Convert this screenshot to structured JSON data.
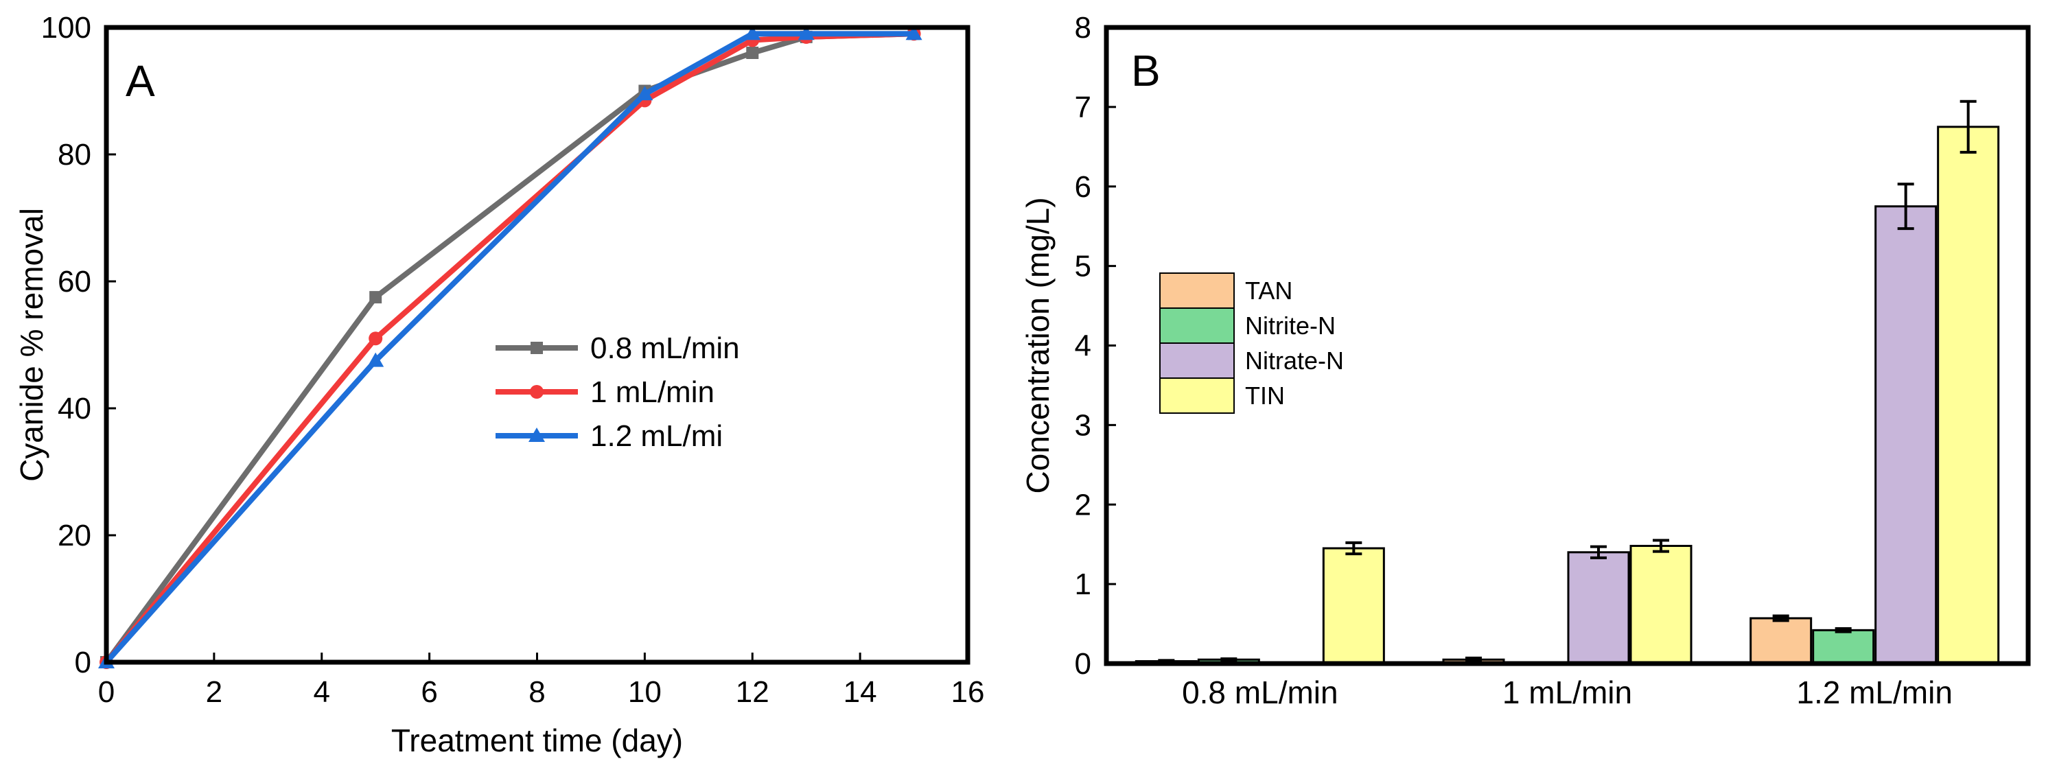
{
  "chart_data": [
    {
      "panel": "A",
      "type": "line",
      "xlabel": "Treatment time (day)",
      "ylabel": "Cyanide % removal",
      "xlim": [
        0,
        16
      ],
      "ylim": [
        0,
        100
      ],
      "xticks": [
        "0",
        "2",
        "4",
        "6",
        "8",
        "10",
        "12",
        "14",
        "16"
      ],
      "yticks": [
        "0",
        "20",
        "40",
        "60",
        "80",
        "100"
      ],
      "legend_position": "center-right",
      "series": [
        {
          "name": "0.8 mL/min",
          "color": "#6d6d6d",
          "marker": "square",
          "x": [
            0,
            5,
            10,
            12,
            13,
            15
          ],
          "y": [
            0,
            57.5,
            90,
            96,
            98.5,
            99
          ]
        },
        {
          "name": "1 mL/min",
          "color": "#f23a3a",
          "marker": "circle",
          "x": [
            0,
            5,
            10,
            12,
            13,
            15
          ],
          "y": [
            0,
            51,
            88.5,
            98,
            98.5,
            99
          ]
        },
        {
          "name": "1.2 mL/mi",
          "color": "#1e6fd9",
          "marker": "triangle",
          "x": [
            0,
            5,
            10,
            12,
            13,
            15
          ],
          "y": [
            0,
            47.5,
            89.5,
            99,
            99,
            99
          ]
        }
      ]
    },
    {
      "panel": "B",
      "type": "bar",
      "xlabel": "",
      "ylabel": "Concentration (mg/L)",
      "ylim": [
        0,
        8
      ],
      "yticks": [
        "0",
        "1",
        "2",
        "3",
        "4",
        "5",
        "6",
        "7",
        "8"
      ],
      "categories": [
        "0.8 mL/min",
        "1 mL/min",
        "1.2 mL/min"
      ],
      "legend_position": "left-middle",
      "series": [
        {
          "name": "TAN",
          "color": "#fcc996",
          "values": [
            0.03,
            0.05,
            0.57
          ],
          "errors": [
            0.01,
            0.02,
            0.03
          ]
        },
        {
          "name": "Nitrite-N",
          "color": "#79d996",
          "values": [
            0.05,
            0,
            0.42
          ],
          "errors": [
            0.01,
            0,
            0.02
          ]
        },
        {
          "name": "Nitrate-N",
          "color": "#c8b6da",
          "values": [
            0,
            1.4,
            5.75
          ],
          "errors": [
            0,
            0.07,
            0.28
          ]
        },
        {
          "name": "TIN",
          "color": "#ffff99",
          "values": [
            1.45,
            1.48,
            6.75
          ],
          "errors": [
            0.07,
            0.07,
            0.32
          ]
        }
      ]
    }
  ]
}
